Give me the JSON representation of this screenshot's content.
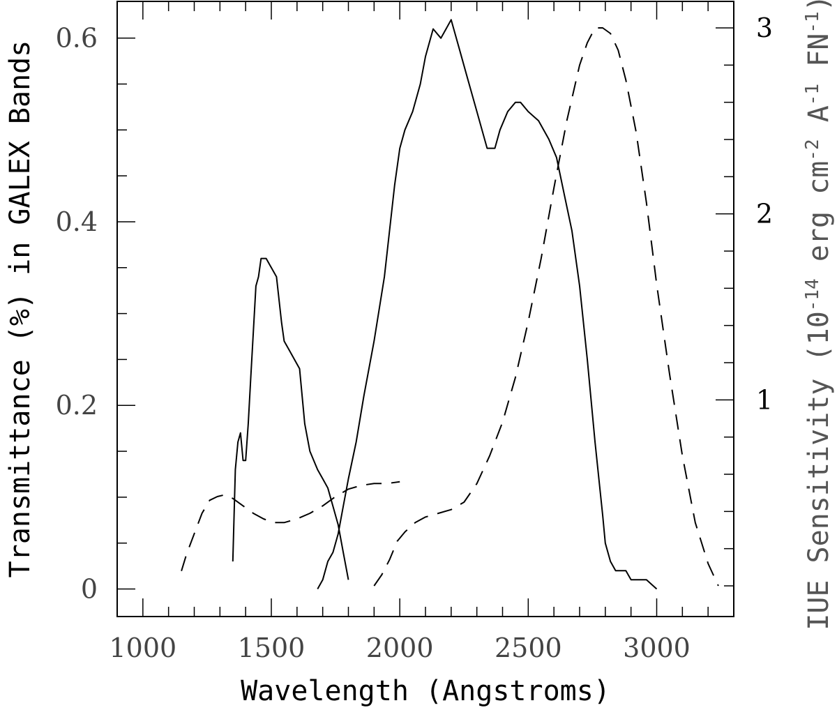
{
  "chart_data": {
    "type": "line",
    "title": "",
    "xlabel": "Wavelength (Angstroms)",
    "ylabel_left": "Transmittance (%) in GALEX Bands",
    "ylabel_right": "IUE Sensitivity (10",
    "ylabel_right_exp1": "-14",
    "ylabel_right_mid1": " erg cm",
    "ylabel_right_exp2": "-2",
    "ylabel_right_mid2": " A",
    "ylabel_right_exp3": "-1",
    "ylabel_right_mid3": " FN",
    "ylabel_right_exp4": "-1",
    "ylabel_right_end": ")",
    "xlim": [
      900,
      3300
    ],
    "ylim_left": [
      -0.03,
      0.64
    ],
    "ylim_right": [
      0.0,
      3.0
    ],
    "x_ticks": [
      "1000",
      "1500",
      "2000",
      "2500",
      "3000"
    ],
    "y_left_ticks": [
      "0",
      "0.2",
      "0.4",
      "0.6"
    ],
    "y_right_ticks": [
      "1",
      "2",
      "3"
    ],
    "grid": false,
    "series": [
      {
        "style": "solid",
        "axis": "left",
        "x": [
          1350,
          1355,
          1360,
          1370,
          1380,
          1390,
          1400,
          1410,
          1420,
          1430,
          1440,
          1450,
          1460,
          1480,
          1500,
          1520,
          1540,
          1550,
          1570,
          1590,
          1610,
          1620,
          1630,
          1650,
          1680,
          1700,
          1720,
          1740,
          1760,
          1780,
          1800
        ],
        "y": [
          0.03,
          0.08,
          0.13,
          0.16,
          0.17,
          0.14,
          0.14,
          0.18,
          0.23,
          0.28,
          0.33,
          0.34,
          0.36,
          0.36,
          0.35,
          0.34,
          0.29,
          0.27,
          0.26,
          0.25,
          0.24,
          0.21,
          0.18,
          0.15,
          0.13,
          0.12,
          0.11,
          0.09,
          0.07,
          0.04,
          0.01
        ]
      },
      {
        "style": "solid",
        "axis": "left",
        "x": [
          1680,
          1700,
          1720,
          1740,
          1760,
          1780,
          1800,
          1830,
          1860,
          1900,
          1940,
          1980,
          2000,
          2020,
          2050,
          2080,
          2100,
          2130,
          2160,
          2180,
          2200,
          2210,
          2230,
          2260,
          2300,
          2340,
          2370,
          2390,
          2420,
          2450,
          2470,
          2500,
          2540,
          2580,
          2610,
          2640,
          2670,
          2700,
          2730,
          2760,
          2790,
          2800,
          2820,
          2840,
          2860,
          2880,
          2900,
          2960,
          3000
        ],
        "y": [
          0.0,
          0.01,
          0.03,
          0.04,
          0.06,
          0.09,
          0.12,
          0.16,
          0.21,
          0.27,
          0.34,
          0.44,
          0.48,
          0.5,
          0.52,
          0.55,
          0.58,
          0.61,
          0.6,
          0.61,
          0.62,
          0.61,
          0.59,
          0.56,
          0.52,
          0.48,
          0.48,
          0.5,
          0.52,
          0.53,
          0.53,
          0.52,
          0.51,
          0.49,
          0.47,
          0.43,
          0.39,
          0.33,
          0.25,
          0.16,
          0.08,
          0.05,
          0.03,
          0.02,
          0.02,
          0.02,
          0.01,
          0.01,
          0.0
        ]
      },
      {
        "style": "dashed",
        "axis": "right",
        "x": [
          1150,
          1170,
          1200,
          1230,
          1260,
          1290,
          1320,
          1350,
          1390,
          1430,
          1470,
          1510,
          1550,
          1600,
          1650,
          1700,
          1750,
          1800,
          1850,
          1900,
          1950,
          2000
        ],
        "y": [
          0.08,
          0.17,
          0.28,
          0.39,
          0.46,
          0.48,
          0.49,
          0.47,
          0.43,
          0.39,
          0.36,
          0.34,
          0.34,
          0.36,
          0.39,
          0.43,
          0.48,
          0.52,
          0.54,
          0.55,
          0.55,
          0.56
        ]
      },
      {
        "style": "dashed",
        "axis": "right",
        "x": [
          1900,
          1930,
          1960,
          1990,
          2020,
          2060,
          2100,
          2150,
          2200,
          2250,
          2300,
          2350,
          2400,
          2450,
          2500,
          2550,
          2600,
          2650,
          2700,
          2730,
          2760,
          2790,
          2820,
          2850,
          2880,
          2920,
          2960,
          3000,
          3050,
          3100,
          3150,
          3200,
          3240
        ],
        "y": [
          0.0,
          0.06,
          0.14,
          0.24,
          0.29,
          0.34,
          0.37,
          0.39,
          0.41,
          0.45,
          0.55,
          0.7,
          0.88,
          1.12,
          1.42,
          1.76,
          2.14,
          2.5,
          2.8,
          2.92,
          3.0,
          3.0,
          2.97,
          2.88,
          2.72,
          2.44,
          2.06,
          1.62,
          1.14,
          0.7,
          0.34,
          0.12,
          0.0
        ]
      }
    ]
  }
}
